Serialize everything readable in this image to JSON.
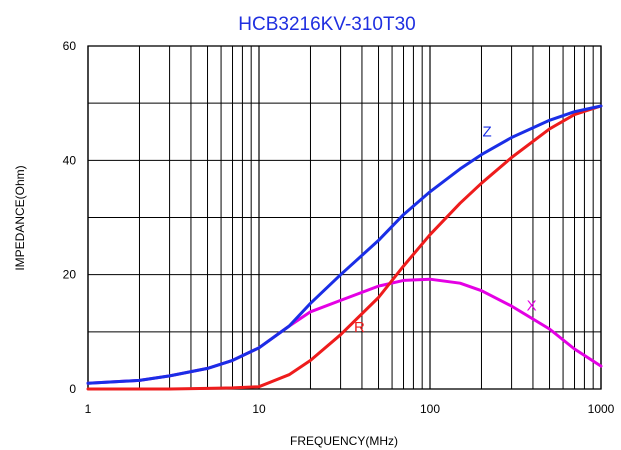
{
  "chart_data": {
    "type": "line",
    "title": "HCB3216KV-310T30",
    "xlabel": "FREQUENCY(MHz)",
    "ylabel": "IMPEDANCE(Ohm)",
    "xscale": "log",
    "xlim": [
      1,
      1000
    ],
    "ylim": [
      0,
      60
    ],
    "grid": true,
    "x_ticks": [
      "1",
      "10",
      "100",
      "1000"
    ],
    "y_ticks": [
      "0",
      "20",
      "40",
      "60"
    ],
    "colors": {
      "Z": "#1a2ee6",
      "R": "#ee1c1c",
      "X": "#e400e4",
      "title": "#1f2fe0"
    },
    "series": [
      {
        "name": "Z",
        "x": [
          1,
          2,
          3,
          5,
          7,
          10,
          15,
          20,
          30,
          50,
          70,
          100,
          150,
          200,
          300,
          500,
          700,
          1000
        ],
        "values": [
          1,
          1.5,
          2.3,
          3.6,
          5,
          7.2,
          11,
          15,
          20,
          26,
          30.5,
          34.5,
          38.5,
          41,
          44,
          47,
          48.5,
          49.5
        ]
      },
      {
        "name": "R",
        "x": [
          1,
          2,
          3,
          5,
          7,
          10,
          15,
          20,
          30,
          50,
          70,
          100,
          150,
          200,
          300,
          500,
          700,
          1000
        ],
        "values": [
          0,
          0,
          0,
          0.1,
          0.2,
          0.4,
          2.5,
          5,
          9.5,
          16,
          21.5,
          27,
          32.5,
          36,
          40.5,
          45.5,
          48,
          49.5
        ]
      },
      {
        "name": "X",
        "x": [
          1,
          2,
          3,
          5,
          7,
          10,
          15,
          20,
          30,
          50,
          70,
          100,
          150,
          200,
          300,
          500,
          700,
          1000
        ],
        "values": [
          1,
          1.5,
          2.3,
          3.6,
          5,
          7.2,
          11,
          13.5,
          15.5,
          18,
          19,
          19.2,
          18.5,
          17.2,
          14.5,
          10.5,
          7,
          4
        ]
      }
    ]
  }
}
